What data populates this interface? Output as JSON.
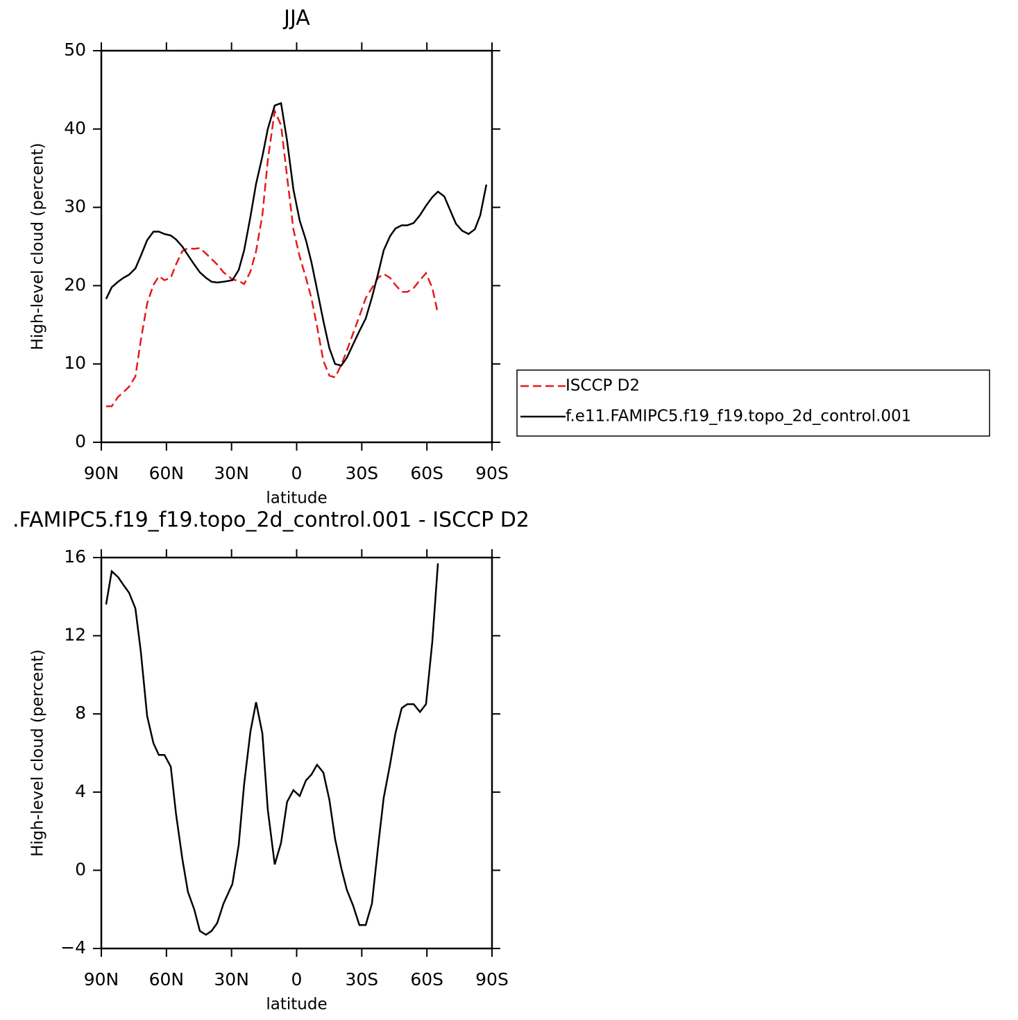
{
  "chart_data": [
    {
      "type": "line",
      "title": "JJA",
      "xlabel": "latitude",
      "ylabel": "High-level cloud (percent)",
      "x": [
        87.8,
        85.2,
        82.3,
        79.8,
        77.2,
        74.3,
        71.8,
        68.9,
        66.0,
        63.5,
        60.9,
        58.0,
        55.6,
        52.7,
        50.1,
        47.2,
        44.6,
        41.8,
        39.2,
        36.6,
        33.7,
        29.6,
        26.7,
        24.2,
        21.3,
        18.7,
        15.8,
        13.3,
        10.1,
        7.2,
        4.4,
        1.5,
        -1.4,
        -4.3,
        -6.8,
        -9.4,
        -12.3,
        -15.1,
        -17.7,
        -20.6,
        -23.1,
        -26.0,
        -28.9,
        -31.8,
        -34.7,
        -37.5,
        -40.1,
        -43.0,
        -45.5,
        -48.4,
        -51.0,
        -53.9,
        -56.8,
        -59.6,
        -62.5,
        -65.1,
        -68.0,
        -70.8,
        -73.4,
        -76.3,
        -79.2,
        -82.1,
        -84.6,
        -87.4
      ],
      "series": [
        {
          "name": "ISCCP D2",
          "color": "#e41a1c",
          "line_style": "dashed",
          "values": [
            4.6,
            4.6,
            5.8,
            6.4,
            7.1,
            8.4,
            13,
            17.7,
            20.1,
            21.2,
            20.7,
            21.0,
            22.7,
            24.4,
            24.8,
            24.7,
            24.8,
            24.1,
            23.4,
            22.7,
            21.7,
            20.8,
            20.6,
            20.2,
            21.8,
            24.4,
            29,
            36,
            42.3,
            40.5,
            33.9,
            27.2,
            23.7,
            21.0,
            18.4,
            14.8,
            10.4,
            8.5,
            8.3,
            9.9,
            11.7,
            13.9,
            16.1,
            18.4,
            19.7,
            21.0,
            21.5,
            21.0,
            20.1,
            19.2,
            19.2,
            19.7,
            20.7,
            21.6,
            19.7,
            16.4,
            null,
            null,
            null,
            null,
            null,
            null,
            null,
            null
          ]
        },
        {
          "name": "f.e11.FAMIPC5.f19_f19.topo_2d_control.001",
          "color": "#000000",
          "line_style": "solid",
          "values": [
            18.3,
            19.8,
            20.5,
            21.0,
            21.4,
            22.2,
            23.8,
            25.8,
            26.9,
            26.9,
            26.6,
            26.4,
            25.9,
            25.0,
            23.9,
            22.7,
            21.7,
            21.0,
            20.5,
            20.4,
            20.5,
            20.7,
            22.0,
            24.5,
            28.8,
            33.0,
            36.5,
            40.0,
            43.0,
            43.3,
            38.5,
            32.3,
            28.3,
            25.8,
            23.0,
            19.5,
            15.5,
            12.0,
            10.0,
            9.8,
            10.8,
            12.5,
            14.2,
            15.8,
            18.5,
            21.5,
            24.5,
            26.3,
            27.3,
            27.7,
            27.7,
            28.0,
            29.0,
            30.2,
            31.3,
            32.0,
            31.4,
            29.6,
            27.9,
            27.0,
            26.6,
            27.2,
            29.0,
            32.9
          ]
        }
      ],
      "xlim": [
        90,
        -90
      ],
      "xticks": [
        {
          "value": 90,
          "label": "90N"
        },
        {
          "value": 60,
          "label": "60N"
        },
        {
          "value": 30,
          "label": "30N"
        },
        0,
        {
          "value": -30,
          "label": "30S"
        },
        {
          "value": -60,
          "label": "60S"
        },
        {
          "value": -90,
          "label": "90S"
        }
      ],
      "ylim": [
        0,
        50
      ],
      "yticks": [
        0,
        10,
        20,
        30,
        40,
        50
      ],
      "legend": "outside right"
    },
    {
      "type": "line",
      "title": ".FAMIPC5.f19_f19.topo_2d_control.001 - ISCCP D2",
      "xlabel": "latitude",
      "ylabel": "High-level cloud (percent)",
      "x": [
        87.8,
        85.2,
        82.3,
        79.8,
        77.2,
        74.3,
        71.8,
        68.9,
        66.0,
        63.5,
        60.9,
        58.0,
        55.6,
        52.7,
        50.1,
        47.2,
        44.6,
        41.8,
        39.2,
        36.6,
        33.7,
        29.6,
        26.7,
        24.2,
        21.3,
        18.7,
        15.8,
        13.3,
        10.1,
        7.2,
        4.4,
        1.5,
        -1.4,
        -4.3,
        -6.8,
        -9.4,
        -12.3,
        -15.1,
        -17.7,
        -20.6,
        -23.1,
        -26.0,
        -28.9,
        -31.8,
        -34.7,
        -37.5,
        -40.1,
        -43.0,
        -45.5,
        -48.4,
        -51.0,
        -53.9,
        -56.8,
        -59.6,
        -62.5,
        -65.1,
        -68.0,
        -70.8,
        -73.4,
        -76.3,
        -79.2,
        -82.1,
        -84.6,
        -87.4
      ],
      "series": [
        {
          "color": "#000000",
          "line_style": "solid",
          "values": [
            13.6,
            15.3,
            15.0,
            14.6,
            14.2,
            13.4,
            11.2,
            7.9,
            6.5,
            5.9,
            5.9,
            5.3,
            2.9,
            0.6,
            -1.1,
            -2.0,
            -3.1,
            -3.3,
            -3.1,
            -2.7,
            -1.7,
            -0.7,
            1.3,
            4.4,
            7.1,
            8.6,
            7.0,
            3.1,
            0.3,
            1.4,
            3.5,
            4.1,
            3.8,
            4.6,
            4.9,
            5.4,
            5.0,
            3.6,
            1.6,
            0.1,
            -1.0,
            -1.8,
            -2.8,
            -2.8,
            -1.7,
            1.2,
            3.7,
            5.4,
            7.0,
            8.3,
            8.5,
            8.5,
            8.1,
            8.5,
            11.7,
            15.7,
            null,
            null,
            null,
            null,
            null,
            null,
            null,
            null
          ]
        }
      ],
      "xlim": [
        90,
        -90
      ],
      "xticks": [
        {
          "value": 90,
          "label": "90N"
        },
        {
          "value": 60,
          "label": "60N"
        },
        {
          "value": 30,
          "label": "30N"
        },
        0,
        {
          "value": -30,
          "label": "30S"
        },
        {
          "value": -60,
          "label": "60S"
        },
        {
          "value": -90,
          "label": "90S"
        }
      ],
      "ylim": [
        -4,
        16
      ],
      "yticks": [
        {
          "value": -4,
          "label": "−4"
        },
        0,
        4,
        8,
        12,
        16
      ]
    }
  ]
}
